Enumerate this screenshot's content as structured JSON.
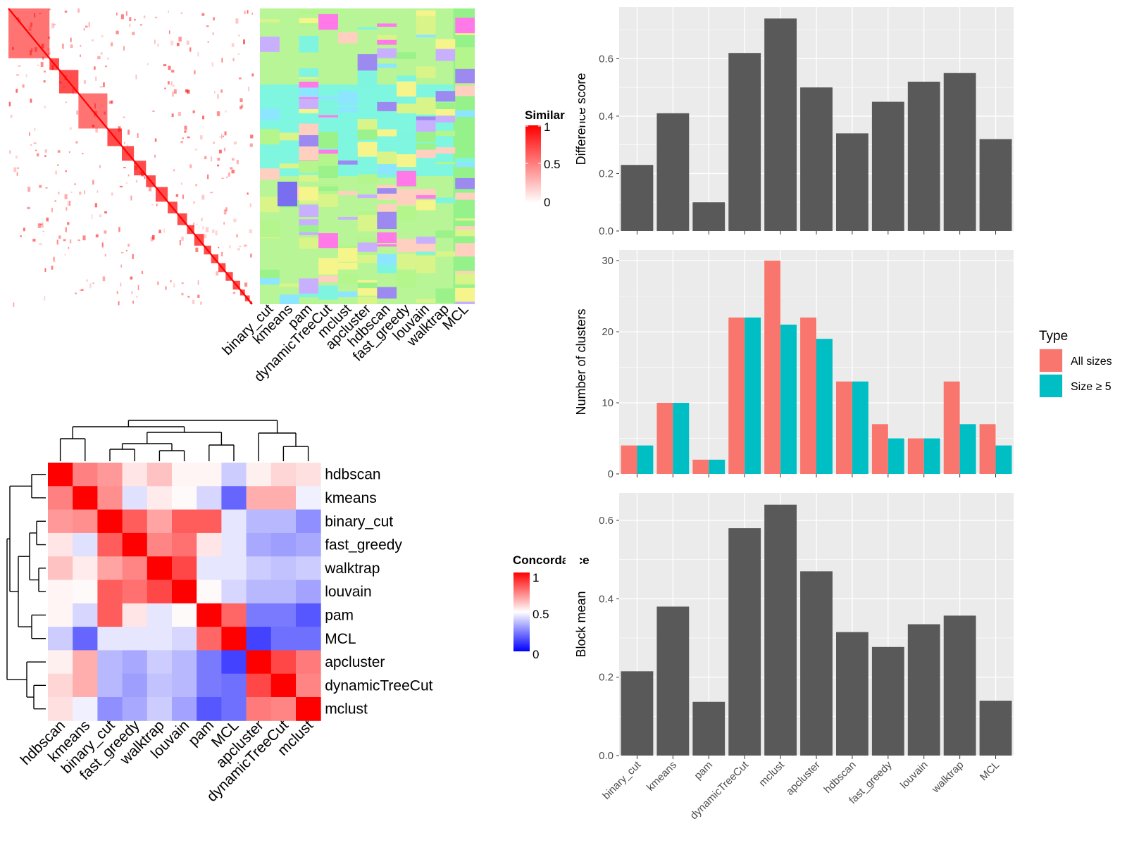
{
  "colors": {
    "panel_bg": "#EBEBEB",
    "grid": "#FFFFFF",
    "bar_fill": "#595959",
    "all_sizes": "#F8766D",
    "size_ge5": "#00BFC4",
    "heat_high": "#FF0000",
    "heat_mid": "#FFFFFF",
    "heat_low": "#0000FF"
  },
  "similarity_panel": {
    "legend_title": "Similarity",
    "legend_ticks": [
      "1",
      "0.5",
      "0"
    ],
    "method_labels": [
      "binary_cut",
      "kmeans",
      "pam",
      "dynamicTreeCut",
      "mclust",
      "apcluster",
      "hdbscan",
      "fast_greedy",
      "louvain",
      "walktrap",
      "MCL"
    ]
  },
  "concordance_panel": {
    "legend_title": "Concordance",
    "legend_ticks": [
      "1",
      "0.5",
      "0"
    ],
    "row_labels": [
      "hdbscan",
      "kmeans",
      "binary_cut",
      "fast_greedy",
      "walktrap",
      "louvain",
      "pam",
      "MCL",
      "apcluster",
      "dynamicTreeCut",
      "mclust"
    ],
    "col_labels": [
      "hdbscan",
      "kmeans",
      "binary_cut",
      "fast_greedy",
      "walktrap",
      "louvain",
      "pam",
      "MCL",
      "apcluster",
      "dynamicTreeCut",
      "mclust"
    ],
    "matrix": [
      [
        1.0,
        0.75,
        0.7,
        0.55,
        0.62,
        0.52,
        0.52,
        0.4,
        0.53,
        0.58,
        0.56
      ],
      [
        0.75,
        1.0,
        0.72,
        0.44,
        0.54,
        0.51,
        0.42,
        0.2,
        0.66,
        0.66,
        0.47
      ],
      [
        0.7,
        0.72,
        1.0,
        0.82,
        0.68,
        0.82,
        0.82,
        0.45,
        0.36,
        0.36,
        0.28
      ],
      [
        0.55,
        0.44,
        0.82,
        1.0,
        0.74,
        0.78,
        0.55,
        0.45,
        0.33,
        0.31,
        0.33
      ],
      [
        0.62,
        0.54,
        0.68,
        0.74,
        1.0,
        0.86,
        0.45,
        0.45,
        0.4,
        0.38,
        0.4
      ],
      [
        0.52,
        0.51,
        0.82,
        0.78,
        0.86,
        1.0,
        0.51,
        0.42,
        0.36,
        0.36,
        0.32
      ],
      [
        0.52,
        0.42,
        0.82,
        0.55,
        0.45,
        0.51,
        1.0,
        0.8,
        0.24,
        0.24,
        0.17
      ],
      [
        0.4,
        0.2,
        0.45,
        0.45,
        0.45,
        0.42,
        0.8,
        1.0,
        0.13,
        0.22,
        0.22
      ],
      [
        0.53,
        0.66,
        0.36,
        0.33,
        0.4,
        0.36,
        0.24,
        0.13,
        1.0,
        0.86,
        0.76
      ],
      [
        0.58,
        0.66,
        0.36,
        0.31,
        0.38,
        0.36,
        0.24,
        0.22,
        0.86,
        1.0,
        0.74
      ],
      [
        0.56,
        0.47,
        0.28,
        0.33,
        0.4,
        0.32,
        0.17,
        0.22,
        0.76,
        0.74,
        1.0
      ]
    ]
  },
  "chart_data": [
    {
      "type": "bar",
      "ylabel": "Difference score",
      "categories": [
        "binary_cut",
        "kmeans",
        "pam",
        "dynamicTreeCut",
        "mclust",
        "apcluster",
        "hdbscan",
        "fast_greedy",
        "louvain",
        "walktrap",
        "MCL"
      ],
      "values": [
        0.23,
        0.41,
        0.1,
        0.62,
        0.74,
        0.5,
        0.34,
        0.45,
        0.52,
        0.55,
        0.32
      ],
      "yticks": [
        "0.0",
        "0.2",
        "0.4",
        "0.6"
      ],
      "ylim": [
        0,
        0.78
      ]
    },
    {
      "type": "bar",
      "ylabel": "Number of clusters",
      "categories": [
        "binary_cut",
        "kmeans",
        "pam",
        "dynamicTreeCut",
        "mclust",
        "apcluster",
        "hdbscan",
        "fast_greedy",
        "louvain",
        "walktrap",
        "MCL"
      ],
      "series": [
        {
          "name": "All sizes",
          "values": [
            4,
            10,
            2,
            22,
            30,
            22,
            13,
            7,
            5,
            13,
            7
          ]
        },
        {
          "name": "Size ≥ 5",
          "values": [
            4,
            10,
            2,
            22,
            21,
            19,
            13,
            5,
            5,
            7,
            4
          ]
        }
      ],
      "legend_title": "Type",
      "legend_position": "right",
      "yticks": [
        "0",
        "10",
        "20",
        "30"
      ],
      "ylim": [
        0,
        31.5
      ]
    },
    {
      "type": "bar",
      "ylabel": "Block mean",
      "categories": [
        "binary_cut",
        "kmeans",
        "pam",
        "dynamicTreeCut",
        "mclust",
        "apcluster",
        "hdbscan",
        "fast_greedy",
        "louvain",
        "walktrap",
        "MCL"
      ],
      "values": [
        0.215,
        0.38,
        0.137,
        0.58,
        0.64,
        0.47,
        0.315,
        0.277,
        0.335,
        0.357,
        0.14
      ],
      "yticks": [
        "0.0",
        "0.2",
        "0.4",
        "0.6"
      ],
      "ylim": [
        0,
        0.67
      ]
    }
  ]
}
